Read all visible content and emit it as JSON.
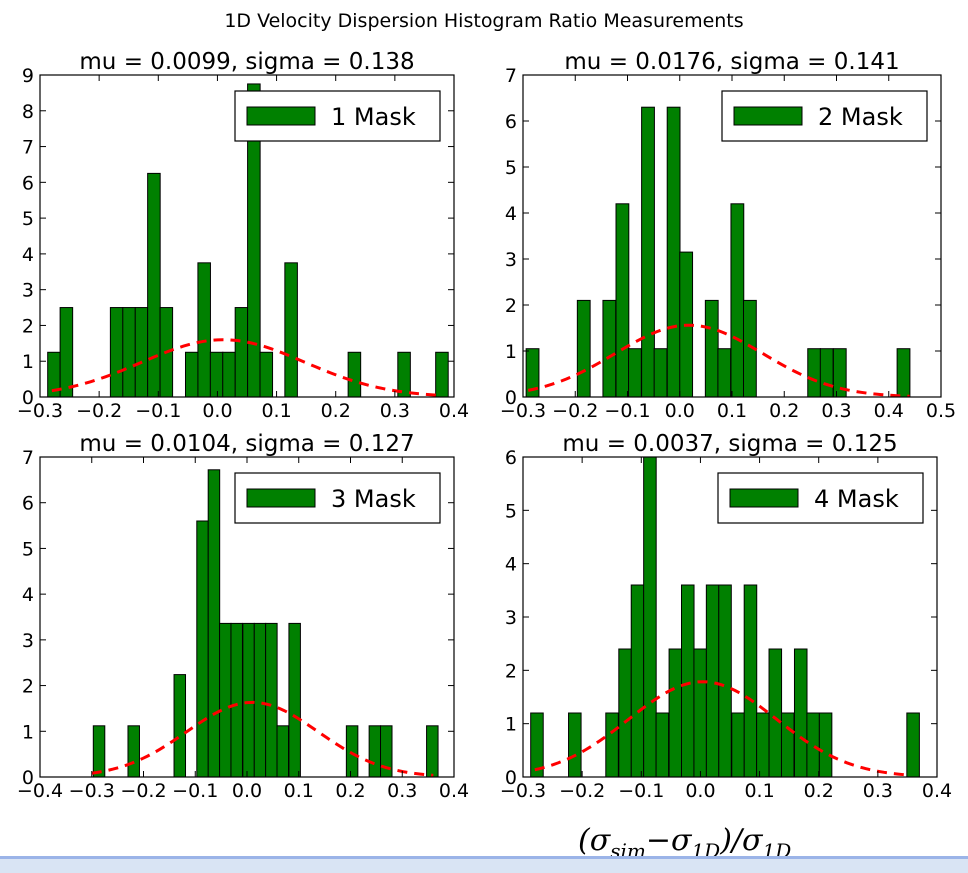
{
  "suptitle": "1D Velocity Dispersion Histogram Ratio Measurements",
  "xlabel": "(σsim−σ1D)/σ1D",
  "xlabel_parts": {
    "open": "(σ",
    "sim": "sim",
    "minus": "−σ",
    "oneD": "1D",
    "close": ")/σ",
    "oneD2": "1D"
  },
  "colors": {
    "bar": "#008000",
    "bar_edge": "#000000",
    "fit": "#ff0000",
    "accent_strip": "#9bb4e8"
  },
  "chart_data": [
    {
      "type": "bar",
      "title": "mu = 0.0099, sigma = 0.138",
      "legend": "1 Mask",
      "legend_position": "top-right",
      "xlim": [
        -0.3,
        0.4
      ],
      "ylim": [
        0,
        9
      ],
      "xticks": [
        -0.3,
        -0.2,
        -0.1,
        0.0,
        0.1,
        0.2,
        0.3,
        0.4
      ],
      "xtick_labels": [
        "−0.3",
        "−0.2",
        "−0.1",
        "0.0",
        "0.1",
        "0.2",
        "0.3",
        "0.4"
      ],
      "yticks": [
        0,
        1,
        2,
        3,
        4,
        5,
        6,
        7,
        8,
        9
      ],
      "bin_width": 0.0212,
      "bin_starts": [
        -0.287,
        -0.266,
        -0.181,
        -0.16,
        -0.139,
        -0.118,
        -0.097,
        -0.054,
        -0.033,
        -0.012,
        0.009,
        0.03,
        0.051,
        0.072,
        0.114,
        0.221,
        0.305,
        0.369
      ],
      "values": [
        1.25,
        2.5,
        2.5,
        2.5,
        2.5,
        6.25,
        2.5,
        1.25,
        3.75,
        1.25,
        1.25,
        2.5,
        8.75,
        1.25,
        3.75,
        1.25,
        1.25,
        1.25
      ],
      "fit": {
        "mu": 0.0099,
        "sigma": 0.138,
        "xrange": [
          -0.28,
          0.38
        ]
      }
    },
    {
      "type": "bar",
      "title": "mu = 0.0176, sigma = 0.141",
      "legend": "2 Mask",
      "legend_position": "top-right",
      "xlim": [
        -0.3,
        0.5
      ],
      "ylim": [
        0,
        7
      ],
      "xticks": [
        -0.3,
        -0.2,
        -0.1,
        0.0,
        0.1,
        0.2,
        0.3,
        0.4,
        0.5
      ],
      "xtick_labels": [
        "−0.3",
        "−0.2",
        "−0.1",
        "0.0",
        "0.1",
        "0.2",
        "0.3",
        "0.4",
        "0.5"
      ],
      "yticks": [
        0,
        1,
        2,
        3,
        4,
        5,
        6,
        7
      ],
      "bin_width": 0.0245,
      "bin_starts": [
        -0.294,
        -0.196,
        -0.147,
        -0.122,
        -0.098,
        -0.073,
        -0.049,
        -0.024,
        0.0,
        0.049,
        0.073,
        0.098,
        0.122,
        0.245,
        0.269,
        0.294,
        0.416
      ],
      "values": [
        1.05,
        2.1,
        2.1,
        4.2,
        1.05,
        6.3,
        1.05,
        6.3,
        3.15,
        2.1,
        1.05,
        4.2,
        2.1,
        1.05,
        1.05,
        1.05,
        1.05
      ],
      "fit": {
        "mu": 0.0176,
        "sigma": 0.141,
        "xrange": [
          -0.29,
          0.44
        ]
      }
    },
    {
      "type": "bar",
      "title": "mu = 0.0104, sigma = 0.127",
      "legend": "3 Mask",
      "legend_position": "top-right",
      "xlim": [
        -0.4,
        0.4
      ],
      "ylim": [
        0,
        7
      ],
      "xticks": [
        -0.4,
        -0.3,
        -0.2,
        -0.1,
        0.0,
        0.1,
        0.2,
        0.3,
        0.4
      ],
      "xtick_labels": [
        "−0.4",
        "−0.3",
        "−0.2",
        "−0.1",
        "0.0",
        "0.1",
        "0.2",
        "0.3",
        "0.4"
      ],
      "yticks": [
        0,
        1,
        2,
        3,
        4,
        5,
        6,
        7
      ],
      "bin_width": 0.0222,
      "bin_starts": [
        -0.297,
        -0.23,
        -0.141,
        -0.097,
        -0.075,
        -0.053,
        -0.031,
        -0.008,
        0.014,
        0.036,
        0.058,
        0.081,
        0.192,
        0.236,
        0.258,
        0.347
      ],
      "values": [
        1.12,
        1.12,
        2.24,
        5.6,
        6.72,
        3.36,
        3.36,
        3.36,
        3.36,
        3.36,
        1.12,
        3.36,
        1.12,
        1.12,
        1.12,
        1.12
      ],
      "fit": {
        "mu": 0.0104,
        "sigma": 0.127,
        "xrange": [
          -0.3,
          0.36
        ]
      }
    },
    {
      "type": "bar",
      "title": "mu = 0.0037, sigma = 0.125",
      "legend": "4 Mask",
      "legend_position": "top-right",
      "xlim": [
        -0.3,
        0.4
      ],
      "ylim": [
        0,
        6
      ],
      "xticks": [
        -0.3,
        -0.2,
        -0.1,
        0.0,
        0.1,
        0.2,
        0.3,
        0.4
      ],
      "xtick_labels": [
        "−0.3",
        "−0.2",
        "−0.1",
        "0.0",
        "0.1",
        "0.2",
        "0.3",
        "0.4"
      ],
      "yticks": [
        0,
        1,
        2,
        3,
        4,
        5,
        6
      ],
      "bin_width": 0.0212,
      "bin_starts": [
        -0.287,
        -0.223,
        -0.16,
        -0.138,
        -0.117,
        -0.096,
        -0.075,
        -0.053,
        -0.032,
        -0.011,
        0.01,
        0.031,
        0.053,
        0.074,
        0.095,
        0.116,
        0.137,
        0.159,
        0.18,
        0.201,
        0.349
      ],
      "values": [
        1.2,
        1.2,
        1.2,
        2.4,
        3.6,
        6.0,
        1.2,
        2.4,
        3.6,
        2.4,
        3.6,
        3.6,
        1.2,
        3.6,
        1.2,
        2.4,
        1.2,
        2.4,
        1.2,
        1.2,
        1.2
      ],
      "fit": {
        "mu": 0.0037,
        "sigma": 0.125,
        "xrange": [
          -0.28,
          0.35
        ]
      }
    }
  ]
}
